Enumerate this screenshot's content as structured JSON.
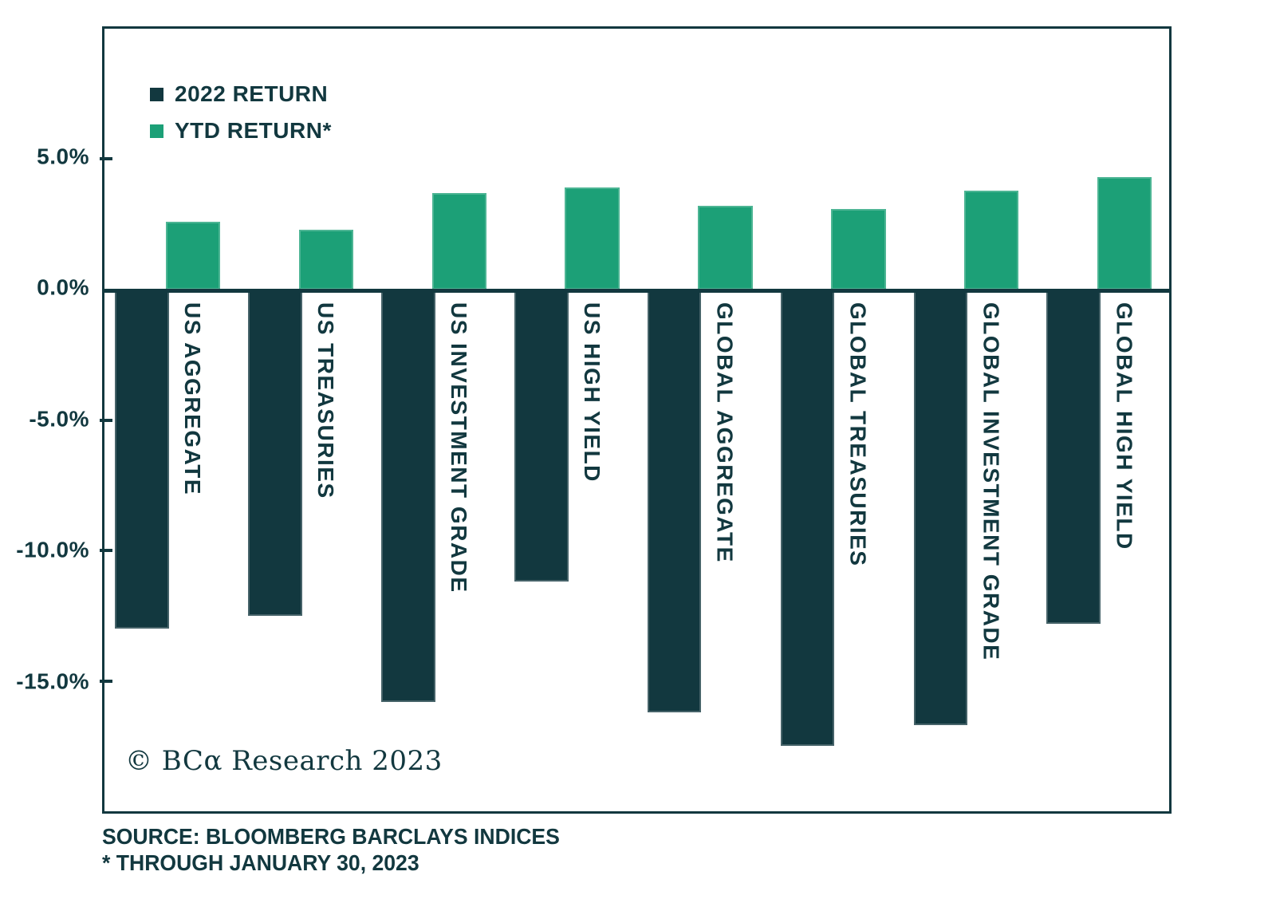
{
  "colors": {
    "dark_teal": "#12383F",
    "green": "#1CA077",
    "background": "#FFFFFF"
  },
  "legend": [
    {
      "label": "2022 RETURN",
      "color": "#12383F"
    },
    {
      "label": "YTD RETURN*",
      "color": "#1CA077"
    }
  ],
  "copyright": "© BCα Research 2023",
  "footer": {
    "source_line1": "SOURCE: BLOOMBERG BARCLAYS INDICES",
    "source_line2": "* THROUGH JANUARY 30, 2023"
  },
  "chart_data": {
    "type": "bar",
    "title": "",
    "xlabel": "",
    "ylabel": "",
    "categories": [
      "US AGGREGATE",
      "US TREASURIES",
      "US INVESTMENT GRADE",
      "US HIGH YIELD",
      "GLOBAL AGGREGATE",
      "GLOBAL TREASURIES",
      "GLOBAL INVESTMENT GRADE",
      "GLOBAL HIGH YIELD"
    ],
    "series": [
      {
        "name": "2022 RETURN",
        "color": "#12383F",
        "values": [
          -13.0,
          -12.5,
          -15.8,
          -11.2,
          -16.2,
          -17.5,
          -16.7,
          -12.8
        ]
      },
      {
        "name": "YTD RETURN*",
        "color": "#1CA077",
        "values": [
          2.6,
          2.3,
          3.7,
          3.9,
          3.2,
          3.1,
          3.8,
          4.3
        ]
      }
    ],
    "y_ticks": [
      {
        "label": "5.0%",
        "value": 5
      },
      {
        "label": "0.0%",
        "value": 0
      },
      {
        "label": "-5.0%",
        "value": -5
      },
      {
        "label": "-10.0%",
        "value": -10
      },
      {
        "label": "-15.0%",
        "value": -15
      }
    ],
    "ylim": [
      -20,
      10
    ],
    "grid": false,
    "legend_position": "top-left"
  }
}
